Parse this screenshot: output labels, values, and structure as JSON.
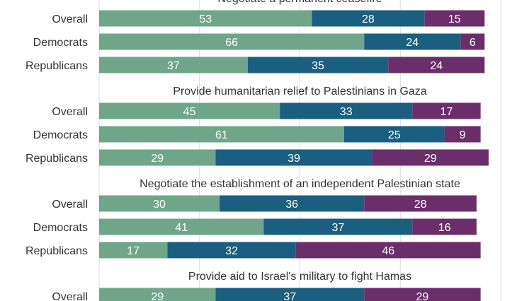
{
  "chart_data": {
    "type": "bar",
    "orientation": "horizontal",
    "stacked": true,
    "grid": true,
    "xlim": [
      0,
      100
    ],
    "colors": [
      "#6fa68a",
      "#1a5f80",
      "#6a2f6b"
    ],
    "panels": [
      {
        "title": "Negotiate a permanent ceasefire",
        "categories": [
          "Overall",
          "Democrats",
          "Republicans"
        ],
        "values": [
          [
            53,
            28,
            15
          ],
          [
            66,
            24,
            6
          ],
          [
            37,
            35,
            24
          ]
        ]
      },
      {
        "title": "Provide humanitarian relief to Palestinians in Gaza",
        "categories": [
          "Overall",
          "Democrats",
          "Republicans"
        ],
        "values": [
          [
            45,
            33,
            17
          ],
          [
            61,
            25,
            9
          ],
          [
            29,
            39,
            29
          ]
        ]
      },
      {
        "title": "Negotiate the establishment of an independent Palestinian state",
        "categories": [
          "Overall",
          "Democrats",
          "Republicans"
        ],
        "values": [
          [
            30,
            36,
            28
          ],
          [
            41,
            37,
            16
          ],
          [
            17,
            32,
            46
          ]
        ]
      },
      {
        "title": "Provide aid to Israel's military to fight Hamas",
        "categories": [
          "Overall"
        ],
        "values": [
          [
            29,
            37,
            29
          ]
        ]
      }
    ]
  }
}
